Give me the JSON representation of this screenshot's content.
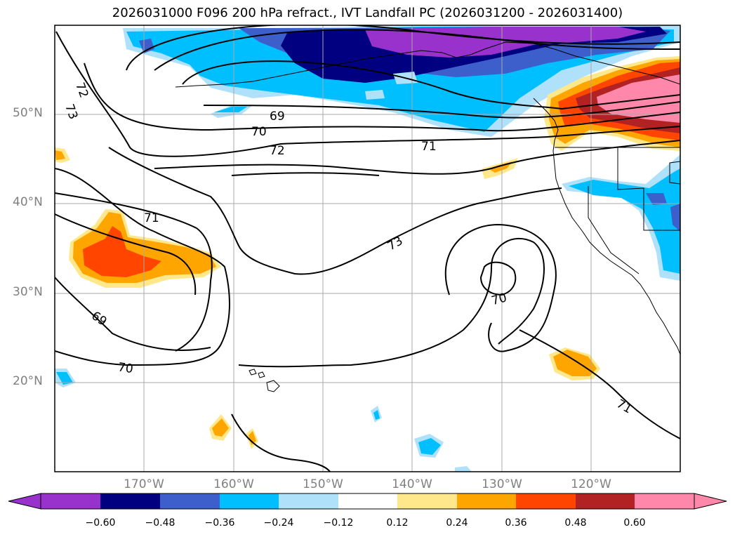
{
  "title": "2026031000 F096 200 hPa refract., IVT Landfall PC (2026031200 - 2026031400)",
  "map": {
    "lat_labels": [
      "50°N",
      "40°N",
      "30°N",
      "20°N"
    ],
    "lon_labels": [
      "170°W",
      "160°W",
      "150°W",
      "140°W",
      "130°W",
      "120°W"
    ],
    "contour_labels": [
      "72",
      "73",
      "69",
      "70",
      "72",
      "71",
      "71",
      "73",
      "70",
      "69",
      "70",
      "71"
    ],
    "colors": {
      "purple": "#9932cc",
      "navy": "#000080",
      "blue": "#3d5fcc",
      "cyan": "#00bfff",
      "lightblue": "#afe1fa",
      "yellow": "#ffe88c",
      "orange": "#ffa500",
      "redorange": "#ff4500",
      "firebrick": "#b22222",
      "pink": "#ff88aa"
    }
  },
  "colorbar": {
    "tick_labels": [
      "−0.60",
      "−0.48",
      "−0.36",
      "−0.24",
      "−0.12",
      "0.12",
      "0.24",
      "0.36",
      "0.48",
      "0.60"
    ],
    "colors": [
      "#9932cc",
      "#000080",
      "#3d5fcc",
      "#00bfff",
      "#afe1fa",
      "#ffffff",
      "#ffe88c",
      "#ffa500",
      "#ff4500",
      "#b22222",
      "#ff88aa"
    ]
  }
}
